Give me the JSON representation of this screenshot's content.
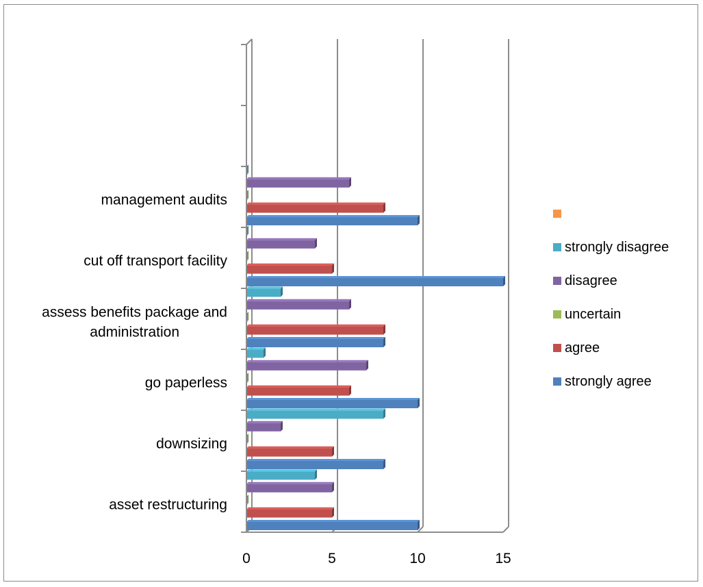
{
  "chart_data": {
    "type": "bar",
    "orientation": "horizontal",
    "title": "",
    "xlabel": "",
    "ylabel": "",
    "xlim": [
      0,
      15
    ],
    "x_ticks": [
      "0",
      "5",
      "10",
      "15"
    ],
    "grid": "vertical major gridlines",
    "legend_placement": "right",
    "categories": [
      "asset restructuring",
      "downsizing",
      "go paperless",
      "assess benefits package and administration",
      "cut off transport facility",
      "management audits",
      "",
      ""
    ],
    "series": [
      {
        "name": "strongly agree",
        "color": "#4f81bd",
        "values": [
          10,
          8,
          10,
          8,
          15,
          10,
          null,
          null
        ]
      },
      {
        "name": "agree",
        "color": "#c0504d",
        "values": [
          5,
          5,
          6,
          8,
          5,
          8,
          null,
          null
        ]
      },
      {
        "name": "uncertain",
        "color": "#9bbb59",
        "values": [
          0,
          0,
          0,
          0,
          0,
          0,
          null,
          null
        ]
      },
      {
        "name": "disagree",
        "color": "#8064a2",
        "values": [
          5,
          2,
          7,
          6,
          4,
          6,
          null,
          null
        ]
      },
      {
        "name": "strongly disagree",
        "color": "#4bacc6",
        "values": [
          4,
          8,
          1,
          2,
          0,
          0,
          null,
          null
        ]
      },
      {
        "name": "",
        "color": "#f79646",
        "values": [
          null,
          null,
          null,
          null,
          null,
          null,
          null,
          null
        ]
      }
    ]
  }
}
